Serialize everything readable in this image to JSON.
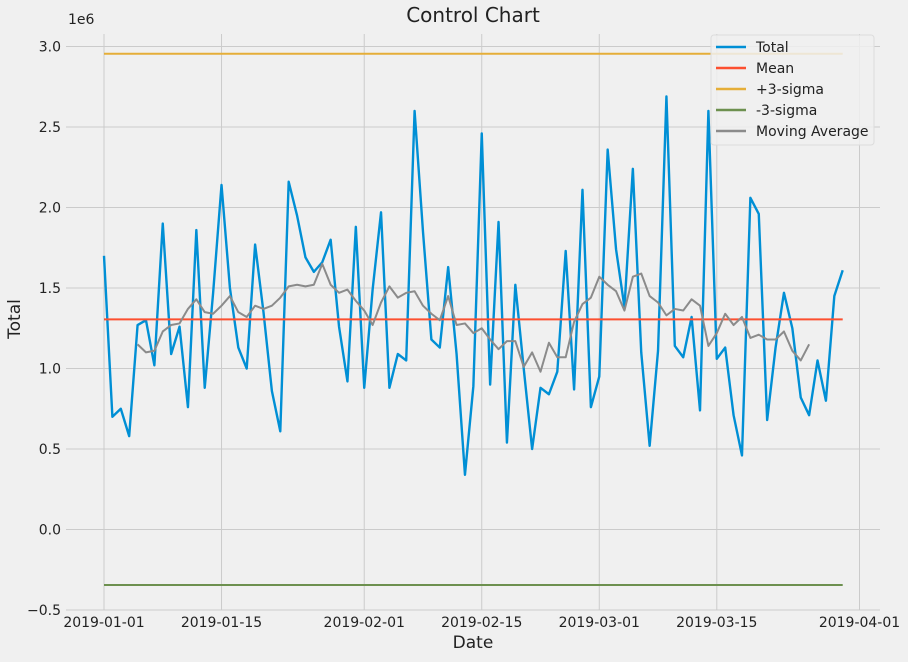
{
  "colors": {
    "total": "#008fd5",
    "mean": "#fc4f30",
    "upper": "#e5ae38",
    "lower": "#6d904f",
    "moving_avg": "#8b8b8b",
    "grid": "#cbcbcb",
    "background": "#f0f0f0"
  },
  "chart_data": {
    "type": "line",
    "title": "Control Chart",
    "xlabel": "Date",
    "ylabel": "Total",
    "y_offset_label": "1e6",
    "grid": true,
    "legend_placement": "top-right",
    "xlim": [
      "2019-01-01",
      "2019-04-01"
    ],
    "ylim": [
      -500000,
      3100000
    ],
    "x_ticks": [
      {
        "date": "2019-01-01",
        "label": "2019-01-01"
      },
      {
        "date": "2019-01-15",
        "label": "2019-01-15"
      },
      {
        "date": "2019-02-01",
        "label": "2019-02-01"
      },
      {
        "date": "2019-02-15",
        "label": "2019-02-15"
      },
      {
        "date": "2019-03-01",
        "label": "2019-03-01"
      },
      {
        "date": "2019-03-15",
        "label": "2019-03-15"
      },
      {
        "date": "2019-04-01",
        "label": "2019-04-01"
      }
    ],
    "y_ticks": [
      {
        "value": -500000,
        "label": "−0.5"
      },
      {
        "value": 0,
        "label": "0.0"
      },
      {
        "value": 500000,
        "label": "0.5"
      },
      {
        "value": 1000000,
        "label": "1.0"
      },
      {
        "value": 1500000,
        "label": "1.5"
      },
      {
        "value": 2000000,
        "label": "2.0"
      },
      {
        "value": 2500000,
        "label": "2.5"
      },
      {
        "value": 3000000,
        "label": "3.0"
      }
    ],
    "start_date": "2019-01-01",
    "series": [
      {
        "name": "Total",
        "color_key": "total",
        "values": [
          1700000,
          700000,
          750000,
          580000,
          1270000,
          1300000,
          1020000,
          1900000,
          1090000,
          1260000,
          760000,
          1860000,
          880000,
          1470000,
          2140000,
          1500000,
          1130000,
          1000000,
          1770000,
          1350000,
          860000,
          610000,
          2160000,
          1950000,
          1690000,
          1600000,
          1660000,
          1800000,
          1260000,
          920000,
          1880000,
          880000,
          1490000,
          1970000,
          880000,
          1090000,
          1050000,
          2600000,
          1850000,
          1180000,
          1130000,
          1630000,
          1090000,
          340000,
          890000,
          2460000,
          900000,
          1910000,
          540000,
          1520000,
          1000000,
          500000,
          880000,
          840000,
          980000,
          1730000,
          870000,
          2110000,
          760000,
          950000,
          2360000,
          1740000,
          1380000,
          2240000,
          1100000,
          520000,
          1110000,
          2690000,
          1140000,
          1070000,
          1320000,
          740000,
          2600000,
          1060000,
          1130000,
          710000,
          460000,
          2060000,
          1960000,
          680000,
          1130000,
          1470000,
          1250000,
          820000,
          710000,
          1050000,
          800000,
          1450000,
          1610000
        ]
      },
      {
        "name": "Mean",
        "color_key": "mean",
        "constant": 1305000,
        "range": [
          "2019-01-01",
          "2019-03-30"
        ]
      },
      {
        "name": "+3-sigma",
        "color_key": "upper",
        "constant": 2955000,
        "range": [
          "2019-01-01",
          "2019-03-30"
        ]
      },
      {
        "name": "-3-sigma",
        "color_key": "lower",
        "constant": -345000,
        "range": [
          "2019-01-01",
          "2019-03-30"
        ]
      },
      {
        "name": "Moving Average",
        "color_key": "moving_avg",
        "start_date": "2019-01-05",
        "values": [
          1150000,
          1100000,
          1110000,
          1230000,
          1270000,
          1280000,
          1370000,
          1430000,
          1350000,
          1340000,
          1390000,
          1450000,
          1350000,
          1320000,
          1390000,
          1370000,
          1390000,
          1440000,
          1510000,
          1520000,
          1510000,
          1520000,
          1650000,
          1520000,
          1470000,
          1490000,
          1420000,
          1360000,
          1270000,
          1410000,
          1510000,
          1440000,
          1470000,
          1480000,
          1390000,
          1340000,
          1300000,
          1450000,
          1270000,
          1280000,
          1220000,
          1250000,
          1180000,
          1120000,
          1170000,
          1170000,
          1010000,
          1100000,
          980000,
          1160000,
          1070000,
          1070000,
          1290000,
          1400000,
          1440000,
          1570000,
          1520000,
          1480000,
          1360000,
          1570000,
          1590000,
          1450000,
          1410000,
          1330000,
          1370000,
          1360000,
          1430000,
          1390000,
          1140000,
          1220000,
          1340000,
          1270000,
          1320000,
          1190000,
          1210000,
          1180000,
          1180000,
          1230000,
          1110000,
          1050000,
          1150000
        ]
      }
    ]
  }
}
